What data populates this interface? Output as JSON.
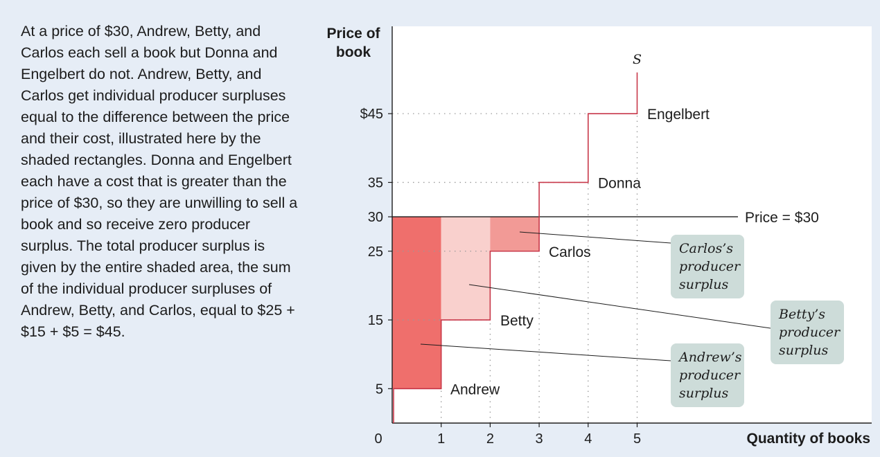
{
  "caption": "At a price of $30, Andrew, Betty, and Carlos each sell a book but Donna and Engelbert do not. Andrew, Betty, and Carlos get individual producer surpluses equal to the difference between the price and their cost, illustrated here by the shaded rectangles. Donna and Engelbert each have a cost that is greater than the price of $30, so they are unwilling to sell a book and so receive zero producer surplus. The total producer surplus is given by the entire shaded area, the sum of the individual producer surpluses of Andrew, Betty, and Carlos, equal to $25 + $15 + $5 = $45.",
  "chart_data": {
    "type": "area",
    "ylabel": [
      "Price of",
      "book"
    ],
    "xlabel": "Quantity of books",
    "xlim": [
      0,
      5.3
    ],
    "ylim": [
      0,
      50
    ],
    "x_ticks": [
      "0",
      "1",
      "2",
      "3",
      "4",
      "5"
    ],
    "y_ticks": [
      {
        "value": 5,
        "label": "5"
      },
      {
        "value": 15,
        "label": "15"
      },
      {
        "value": 25,
        "label": "25"
      },
      {
        "value": 30,
        "label": "30"
      },
      {
        "value": 35,
        "label": "35"
      },
      {
        "value": 45,
        "label": "$45"
      }
    ],
    "supply_curve_label": "S",
    "price_line": {
      "value": 30,
      "label": "Price = $30"
    },
    "sellers": [
      {
        "name": "Andrew",
        "cost": 5,
        "quantity": 1,
        "surplus": 25,
        "color": "#ef6f6c"
      },
      {
        "name": "Betty",
        "cost": 15,
        "quantity": 2,
        "surplus": 15,
        "color": "#f9d0cd"
      },
      {
        "name": "Carlos",
        "cost": 25,
        "quantity": 3,
        "surplus": 5,
        "color": "#f29a96"
      },
      {
        "name": "Donna",
        "cost": 35,
        "quantity": 4,
        "surplus": 0
      },
      {
        "name": "Engelbert",
        "cost": 45,
        "quantity": 5,
        "surplus": 0
      }
    ],
    "callouts": [
      {
        "seller": "Carlos",
        "lines": [
          "Carlos’s",
          "producer",
          "surplus"
        ]
      },
      {
        "seller": "Betty",
        "lines": [
          "Betty’s",
          "producer",
          "surplus"
        ]
      },
      {
        "seller": "Andrew",
        "lines": [
          "Andrew’s",
          "producer",
          "surplus"
        ]
      }
    ],
    "colors": {
      "supply_line": "#c8384a",
      "price_line": "#1c1c1c",
      "callout_box": "#cddcd9",
      "gridline": "#999999"
    }
  }
}
